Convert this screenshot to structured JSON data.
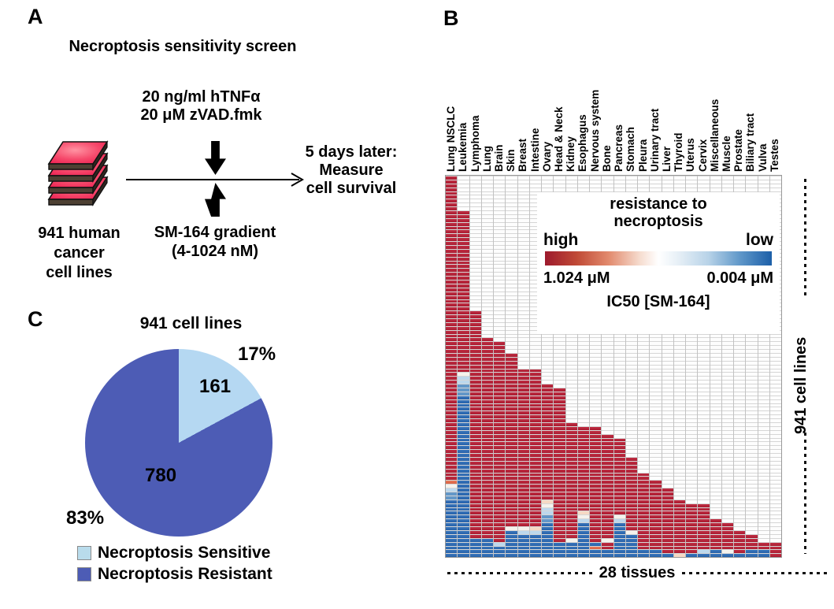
{
  "panelA": {
    "label": "A",
    "title": "Necroptosis sensitivity screen",
    "reagents_line1": "20 ng/ml hTNFα",
    "reagents_line2": "20 μM zVAD.fmk",
    "plates_caption_line1": "941 human",
    "plates_caption_line2": "cancer",
    "plates_caption_line3": "cell lines",
    "gradient_line1": "SM-164 gradient",
    "gradient_line2": "(4-1024 nM)",
    "outcome_line1": "5 days later:",
    "outcome_line2": "Measure",
    "outcome_line3": "cell survival"
  },
  "panelB": {
    "label": "B",
    "bottom_caption": "28 tissues",
    "side_caption": "941 cell lines",
    "legend": {
      "title_line1": "resistance to",
      "title_line2": "necroptosis",
      "left_label": "high",
      "right_label": "low",
      "left_value": "1.024 μM",
      "right_value": "0.004 μM",
      "footer": "IC50 [SM-164]"
    }
  },
  "panelC": {
    "label": "C",
    "title": "941 cell lines",
    "legend": [
      {
        "label": "Necroptosis Sensitive",
        "color": "#b9dcec"
      },
      {
        "label": "Necroptosis Resistant",
        "color": "#4d5cb5"
      }
    ]
  },
  "chart_data": [
    {
      "type": "pie",
      "title": "941 cell lines",
      "labels": [
        "Necroptosis Sensitive",
        "Necroptosis Resistant"
      ],
      "values": [
        161,
        780
      ],
      "percent_labels": [
        "17%",
        "83%"
      ],
      "colors": [
        "#b5d8f2",
        "#4d5cb5"
      ],
      "start_angle_deg": 0,
      "legend_position": "bottom"
    },
    {
      "type": "heatmap",
      "title": "necroptosis resistance per cell line, grouped by tissue",
      "xlabel": "28 tissues",
      "ylabel": "941 cell lines",
      "colorbar": {
        "label": "IC50 [SM-164]",
        "high_label": "high",
        "low_label": "low",
        "high_value": "1.024 μM",
        "low_value": "0.004 μM",
        "meaning": "resistance to necroptosis"
      },
      "palette": {
        "red": "",
        "salmon": "",
        "peach": "",
        "white": "",
        "lightblue": "",
        "midblue": "",
        "blue": ""
      },
      "grid_rows": 99,
      "tissues": [
        {
          "name": "Lung NSCLC",
          "total": 99,
          "segments": [
            [
              "red",
              79
            ],
            [
              "salmon",
              1
            ],
            [
              "white",
              1
            ],
            [
              "lightblue",
              1
            ],
            [
              "midblue",
              2
            ],
            [
              "blue",
              15
            ]
          ]
        },
        {
          "name": "Leukemia",
          "total": 90,
          "segments": [
            [
              "red",
              42
            ],
            [
              "white",
              1
            ],
            [
              "lightblue",
              2
            ],
            [
              "midblue",
              3
            ],
            [
              "blue",
              42
            ]
          ]
        },
        {
          "name": "Lymphoma",
          "total": 64,
          "segments": [
            [
              "red",
              59
            ],
            [
              "blue",
              5
            ]
          ]
        },
        {
          "name": "Lung",
          "total": 57,
          "segments": [
            [
              "red",
              52
            ],
            [
              "blue",
              5
            ]
          ]
        },
        {
          "name": "Brain",
          "total": 56,
          "segments": [
            [
              "red",
              52
            ],
            [
              "lightblue",
              1
            ],
            [
              "blue",
              3
            ]
          ]
        },
        {
          "name": "Skin",
          "total": 53,
          "segments": [
            [
              "red",
              45
            ],
            [
              "white",
              1
            ],
            [
              "blue",
              7
            ]
          ]
        },
        {
          "name": "Breast",
          "total": 49,
          "segments": [
            [
              "red",
              41
            ],
            [
              "white",
              1
            ],
            [
              "lightblue",
              1
            ],
            [
              "blue",
              6
            ]
          ]
        },
        {
          "name": "Intestine",
          "total": 49,
          "segments": [
            [
              "red",
              41
            ],
            [
              "peach",
              1
            ],
            [
              "lightblue",
              1
            ],
            [
              "blue",
              6
            ]
          ]
        },
        {
          "name": "Ovary",
          "total": 45,
          "segments": [
            [
              "red",
              30
            ],
            [
              "peach",
              1
            ],
            [
              "white",
              1
            ],
            [
              "lightblue",
              2
            ],
            [
              "midblue",
              2
            ],
            [
              "blue",
              9
            ]
          ]
        },
        {
          "name": "Head & Neck",
          "total": 44,
          "segments": [
            [
              "red",
              40
            ],
            [
              "blue",
              4
            ]
          ]
        },
        {
          "name": "Kidney",
          "total": 35,
          "segments": [
            [
              "red",
              30
            ],
            [
              "white",
              1
            ],
            [
              "blue",
              4
            ]
          ]
        },
        {
          "name": "Esophagus",
          "total": 34,
          "segments": [
            [
              "red",
              22
            ],
            [
              "peach",
              1
            ],
            [
              "white",
              1
            ],
            [
              "lightblue",
              1
            ],
            [
              "blue",
              9
            ]
          ]
        },
        {
          "name": "Nervous system",
          "total": 34,
          "segments": [
            [
              "red",
              30
            ],
            [
              "blue",
              1
            ],
            [
              "salmon",
              1
            ],
            [
              "blue",
              2
            ]
          ]
        },
        {
          "name": "Bone",
          "total": 32,
          "segments": [
            [
              "red",
              27
            ],
            [
              "white",
              1
            ],
            [
              "red",
              2
            ],
            [
              "blue",
              2
            ]
          ]
        },
        {
          "name": "Pancreas",
          "total": 31,
          "segments": [
            [
              "red",
              20
            ],
            [
              "white",
              1
            ],
            [
              "lightblue",
              1
            ],
            [
              "blue",
              9
            ]
          ]
        },
        {
          "name": "Stomach",
          "total": 26,
          "segments": [
            [
              "red",
              19
            ],
            [
              "white",
              1
            ],
            [
              "blue",
              6
            ]
          ]
        },
        {
          "name": "Pleura",
          "total": 22,
          "segments": [
            [
              "red",
              20
            ],
            [
              "blue",
              2
            ]
          ]
        },
        {
          "name": "Urinary tract",
          "total": 20,
          "segments": [
            [
              "red",
              18
            ],
            [
              "blue",
              2
            ]
          ]
        },
        {
          "name": "Liver",
          "total": 18,
          "segments": [
            [
              "red",
              17
            ],
            [
              "blue",
              1
            ]
          ]
        },
        {
          "name": "Thyroid",
          "total": 15,
          "segments": [
            [
              "red",
              14
            ],
            [
              "peach",
              1
            ]
          ]
        },
        {
          "name": "Uterus",
          "total": 14,
          "segments": [
            [
              "red",
              13
            ],
            [
              "blue",
              1
            ]
          ]
        },
        {
          "name": "Cervix",
          "total": 14,
          "segments": [
            [
              "red",
              12
            ],
            [
              "lightblue",
              1
            ],
            [
              "blue",
              1
            ]
          ]
        },
        {
          "name": "Miscellaneous",
          "total": 10,
          "segments": [
            [
              "red",
              8
            ],
            [
              "blue",
              2
            ]
          ]
        },
        {
          "name": "Muscle",
          "total": 9,
          "segments": [
            [
              "red",
              7
            ],
            [
              "white",
              1
            ],
            [
              "blue",
              1
            ]
          ]
        },
        {
          "name": "Prostate",
          "total": 7,
          "segments": [
            [
              "red",
              6
            ],
            [
              "blue",
              1
            ]
          ]
        },
        {
          "name": "Biliary tract",
          "total": 6,
          "segments": [
            [
              "red",
              4
            ],
            [
              "blue",
              2
            ]
          ]
        },
        {
          "name": "Vulva",
          "total": 4,
          "segments": [
            [
              "red",
              2
            ],
            [
              "blue",
              2
            ]
          ]
        },
        {
          "name": "Testes",
          "total": 4,
          "segments": [
            [
              "red",
              4
            ]
          ]
        }
      ]
    }
  ]
}
